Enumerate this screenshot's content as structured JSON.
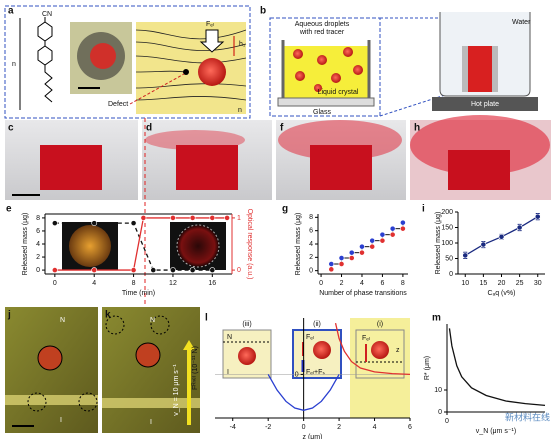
{
  "panels": {
    "labels": [
      "a",
      "b",
      "c",
      "d",
      "e",
      "f",
      "g",
      "h",
      "i",
      "j",
      "k",
      "l",
      "m"
    ]
  },
  "diagram_a": {
    "cn": "CN",
    "n": "n",
    "defect": "Defect",
    "force": "Fₑₗ",
    "height": "h₁",
    "n2": "n"
  },
  "diagram_b": {
    "droplets": [
      "Aqueous droplets",
      "with red tracer"
    ],
    "lc": "Liquid crystal",
    "glass": "Glass",
    "water": "Water",
    "hot": "Hot plate"
  },
  "photos_jk": {
    "n_j": "N",
    "i_j": "I",
    "n_k": "N",
    "i_k": "I",
    "velocity": "v_N = 10 μm s⁻¹"
  },
  "panel_l": {
    "regions": [
      "(iii)",
      "(ii)",
      "(i)"
    ],
    "n": "N",
    "i": "I",
    "fel": "Fₑₗ",
    "fsum": "Fₑₗ+Fₛ",
    "fel2": "Fₑₗ",
    "z": "z"
  },
  "watermark": "新材料在线",
  "chart_data": [
    {
      "type": "line",
      "xlabel": "Time (min)",
      "ylabel": "Released mass (μg)",
      "y2label": "Optical response (a.u.)",
      "xlim": [
        -1,
        18
      ],
      "ylim": [
        -0.6,
        8.6
      ],
      "y2lim": [
        -0.075,
        1.075
      ],
      "xticks": [
        0,
        4,
        8,
        12,
        16
      ],
      "yticks": [
        0,
        2,
        4,
        6,
        8
      ],
      "y2ticks": [
        0,
        1
      ],
      "series": [
        {
          "color": "#111111",
          "style": "dashed",
          "marker": true,
          "x": [
            0,
            4,
            8,
            10,
            12,
            14,
            16
          ],
          "values": [
            7.2,
            7.2,
            7.2,
            0,
            0,
            0,
            0
          ]
        },
        {
          "color": "#e03030",
          "axis": "y2",
          "style": "solid",
          "marker": true,
          "x": [
            0,
            4,
            8,
            9,
            12,
            14,
            16,
            17.5
          ],
          "values": [
            0,
            0,
            0,
            1,
            1,
            1,
            1,
            1
          ]
        }
      ]
    },
    {
      "type": "steps",
      "xlabel": "Number of phase transitions",
      "ylabel": "Released mass (μg)",
      "xlim": [
        -0.3,
        8.5
      ],
      "ylim": [
        -0.5,
        8.5
      ],
      "xticks": [
        0,
        2,
        4,
        6,
        8
      ],
      "yticks": [
        0,
        2,
        4,
        6,
        8
      ],
      "series": [
        {
          "color": "#e03030",
          "marker": true,
          "x": [
            1,
            2,
            3,
            4,
            5,
            6,
            7,
            8
          ],
          "values": [
            0.2,
            1.0,
            1.9,
            2.7,
            3.6,
            4.5,
            5.4,
            6.3
          ]
        },
        {
          "color": "#2a3fd0",
          "marker": true,
          "x": [
            1,
            2,
            3,
            4,
            5,
            6,
            7,
            8
          ],
          "values": [
            1.0,
            1.9,
            2.7,
            3.6,
            4.5,
            5.4,
            6.3,
            7.2
          ]
        }
      ]
    },
    {
      "type": "line",
      "xlabel": "Cₐq (v%)",
      "ylabel": "Released mass (μg)",
      "xlim": [
        8,
        32
      ],
      "ylim": [
        0,
        200
      ],
      "xticks": [
        10,
        15,
        20,
        25,
        30
      ],
      "yticks": [
        0,
        50,
        100,
        150,
        200
      ],
      "series": [
        {
          "color": "#1a2a80",
          "style": "solid",
          "marker": true,
          "x": [
            10,
            15,
            20,
            25,
            30
          ],
          "values": [
            60,
            95,
            120,
            150,
            185
          ],
          "errors": [
            10,
            10,
            8,
            10,
            10
          ]
        }
      ]
    },
    {
      "type": "line",
      "xlabel": "z (μm)",
      "ylabel": "Fᴿⁿᵉᵗ (10⁻¹¹ N)",
      "xlim": [
        -5,
        6
      ],
      "ylim": [
        -1.7,
        2.2
      ],
      "xticks": [
        -4,
        -2,
        0,
        2,
        4,
        6
      ],
      "yticks": [
        0
      ],
      "series": [
        {
          "color": "#2a3fd0",
          "style": "solid",
          "marker": false,
          "x": [
            -2,
            -1.5,
            -1,
            -0.5,
            0,
            0.5,
            1,
            1.5,
            2
          ],
          "values": [
            0,
            -0.61,
            -1.05,
            -1.31,
            -1.4,
            -1.31,
            -1.05,
            -0.61,
            0
          ]
        },
        {
          "color": "#e03030",
          "style": "solid",
          "marker": false,
          "x": [
            1.8,
            2,
            2.3,
            2.7,
            3.2,
            4,
            5,
            6
          ],
          "values": [
            2,
            1.4,
            0.9,
            0.5,
            0.25,
            0.1,
            0.03,
            0
          ]
        }
      ]
    },
    {
      "type": "line",
      "xlabel": "v_N (μm s⁻¹)",
      "ylabel": "R* (μm)",
      "xlim": [
        0,
        2
      ],
      "ylim": [
        0,
        40
      ],
      "xticks": [
        0
      ],
      "yticks": [
        0,
        10
      ],
      "series": [
        {
          "color": "#111111",
          "style": "solid",
          "marker": false,
          "x": [
            0.05,
            0.1,
            0.2,
            0.3,
            0.5,
            0.8,
            1.2,
            1.6,
            2
          ],
          "values": [
            38,
            30,
            21,
            16,
            11,
            7.5,
            5,
            3.8,
            3
          ]
        }
      ]
    }
  ]
}
